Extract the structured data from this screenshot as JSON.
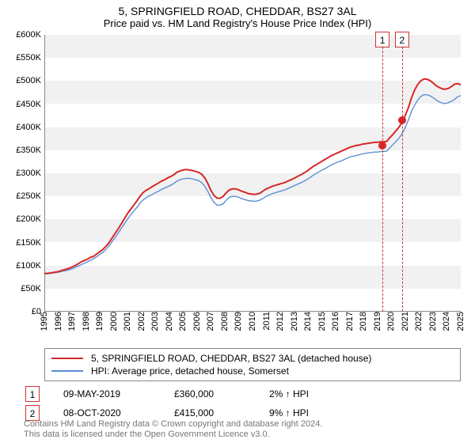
{
  "title": "5, SPRINGFIELD ROAD, CHEDDAR, BS27 3AL",
  "subtitle": "Price paid vs. HM Land Registry's House Price Index (HPI)",
  "chart": {
    "type": "line",
    "x_start_year": 1995,
    "x_end_year": 2025,
    "ylim": [
      0,
      600
    ],
    "ytick_step": 50,
    "y_prefix": "£",
    "y_suffix": "K",
    "background_color": "#ffffff",
    "band_color": "#f1f1f1",
    "axis_color": "#888888",
    "series": [
      {
        "name": "5, SPRINGFIELD ROAD, CHEDDAR, BS27 3AL (detached house)",
        "color": "#d62728",
        "width": 2,
        "values": [
          83,
          83,
          84,
          85,
          86,
          88,
          90,
          92,
          94,
          97,
          100,
          104,
          108,
          111,
          114,
          118,
          120,
          125,
          130,
          135,
          142,
          150,
          160,
          170,
          180,
          191,
          202,
          213,
          222,
          231,
          240,
          250,
          258,
          263,
          267,
          271,
          275,
          279,
          283,
          286,
          290,
          293,
          297,
          302,
          305,
          307,
          308,
          307,
          306,
          304,
          302,
          298,
          290,
          278,
          263,
          252,
          246,
          246,
          250,
          258,
          264,
          266,
          266,
          264,
          261,
          259,
          256,
          255,
          254,
          255,
          257,
          262,
          266,
          269,
          272,
          274,
          276,
          278,
          280,
          283,
          286,
          289,
          293,
          296,
          300,
          304,
          309,
          314,
          318,
          322,
          326,
          330,
          334,
          338,
          341,
          344,
          347,
          350,
          353,
          356,
          358,
          360,
          361,
          363,
          364,
          365,
          366,
          367,
          367,
          368,
          368,
          369,
          377,
          384,
          392,
          400,
          411,
          425,
          442,
          463,
          480,
          492,
          500,
          504,
          504,
          501,
          496,
          490,
          486,
          483,
          482,
          484,
          488,
          493,
          494,
          492
        ]
      },
      {
        "name": "HPI: Average price, detached house, Somerset",
        "color": "#5b8fd6",
        "width": 1.4,
        "values": [
          82,
          82,
          83,
          84,
          85,
          86,
          88,
          89,
          91,
          93,
          96,
          99,
          102,
          105,
          108,
          112,
          115,
          119,
          124,
          129,
          135,
          143,
          152,
          161,
          171,
          181,
          191,
          201,
          210,
          218,
          226,
          235,
          242,
          247,
          251,
          254,
          258,
          261,
          265,
          268,
          271,
          274,
          278,
          283,
          286,
          288,
          289,
          289,
          288,
          286,
          284,
          280,
          272,
          261,
          247,
          237,
          231,
          231,
          234,
          242,
          248,
          250,
          250,
          248,
          245,
          243,
          241,
          240,
          239,
          240,
          242,
          246,
          250,
          253,
          256,
          258,
          260,
          262,
          264,
          267,
          270,
          273,
          276,
          279,
          282,
          286,
          290,
          295,
          299,
          303,
          307,
          310,
          314,
          318,
          321,
          324,
          326,
          329,
          332,
          335,
          337,
          338,
          340,
          342,
          343,
          344,
          345,
          346,
          346,
          347,
          347,
          348,
          355,
          362,
          369,
          376,
          386,
          399,
          415,
          434,
          447,
          458,
          466,
          470,
          470,
          468,
          464,
          459,
          455,
          452,
          451,
          453,
          456,
          460,
          466,
          468
        ]
      }
    ],
    "sales": [
      {
        "num": "1",
        "date": "09-MAY-2019",
        "price": "£360,000",
        "diff": "2% ↑ HPI",
        "year": 2019.36,
        "value": 360,
        "dot_color": "#d62728"
      },
      {
        "num": "2",
        "date": "08-OCT-2020",
        "price": "£415,000",
        "diff": "9% ↑ HPI",
        "year": 2020.77,
        "value": 415,
        "dot_color": "#d62728"
      }
    ]
  },
  "legend": {
    "border_color": "#888888"
  },
  "footer": {
    "line1": "Contains HM Land Registry data © Crown copyright and database right 2024.",
    "line2": "This data is licensed under the Open Government Licence v3.0."
  }
}
